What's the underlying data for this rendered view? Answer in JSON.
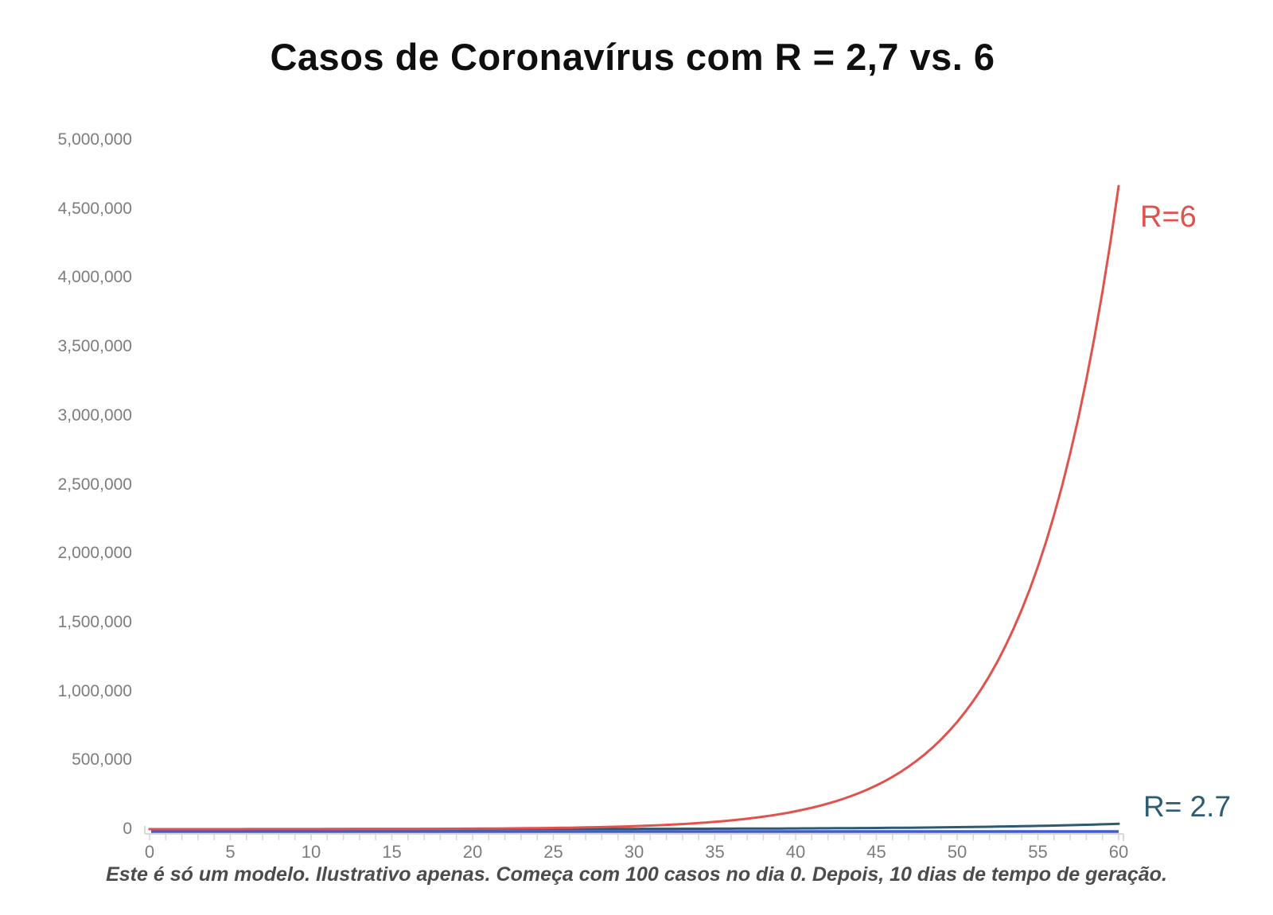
{
  "title": "Casos de Coronavírus com R = 2,7 vs. 6",
  "footnote": "Este é só um modelo. Ilustrativo apenas. Começa com 100 casos no dia 0. Depois, 10 dias de tempo de geração.",
  "annotations": {
    "r6_label": "R=6",
    "r27_label": "R= 2.7"
  },
  "colors": {
    "r6_line": "#e1524d",
    "r27_line": "#2c5a6e",
    "flat_blue_line": "#3d5cd0",
    "axis": "#d8d8d8",
    "tick_labels": "#7d7d7d",
    "title": "#0f0f0f",
    "footnote": "#4c4c4c",
    "background": "#ffffff"
  },
  "axes": {
    "y_tick_labels": [
      "0",
      "500,000",
      "1,000,000",
      "1,500,000",
      "2,000,000",
      "2,500,000",
      "3,000,000",
      "3,500,000",
      "4,000,000",
      "4,500,000",
      "5,000,000"
    ],
    "y_tick_values": [
      0,
      500000,
      1000000,
      1500000,
      2000000,
      2500000,
      3000000,
      3500000,
      4000000,
      4500000,
      5000000
    ],
    "x_tick_labels": [
      "0",
      "5",
      "10",
      "15",
      "20",
      "25",
      "30",
      "35",
      "40",
      "45",
      "50",
      "55",
      "60"
    ],
    "x_tick_values": [
      0,
      5,
      10,
      15,
      20,
      25,
      30,
      35,
      40,
      45,
      50,
      55,
      60
    ],
    "minor_tick_every_days": 1
  },
  "chart_data": {
    "type": "line",
    "title": "Casos de Coronavírus com R = 2,7 vs. 6",
    "xlabel": "",
    "ylabel": "",
    "xlim": [
      0,
      60
    ],
    "ylim": [
      0,
      5000000
    ],
    "grid": false,
    "legend": "inline-annotations",
    "model": {
      "start_cases": 100,
      "generation_time_days": 10,
      "day_range": [
        0,
        60
      ]
    },
    "x": [
      0,
      5,
      10,
      15,
      20,
      25,
      30,
      35,
      40,
      45,
      50,
      55,
      60
    ],
    "series": [
      {
        "name": "R=6",
        "r": 6,
        "color": "#e1524d",
        "values": [
          100,
          245,
          600,
          1470,
          3600,
          8818,
          21600,
          52915,
          129600,
          317490,
          777600,
          1904720,
          4665600
        ]
      },
      {
        "name": "R= 2.7",
        "r": 2.7,
        "color": "#2c5a6e",
        "values": [
          100,
          164,
          270,
          444,
          729,
          1198,
          1968,
          3234,
          5314,
          8733,
          14349,
          23578,
          38742
        ]
      }
    ],
    "extra_lines": [
      {
        "name": "flat-blue-baseline",
        "color": "#3d5cd0",
        "value": 0,
        "x_range": [
          0,
          60
        ]
      }
    ]
  }
}
